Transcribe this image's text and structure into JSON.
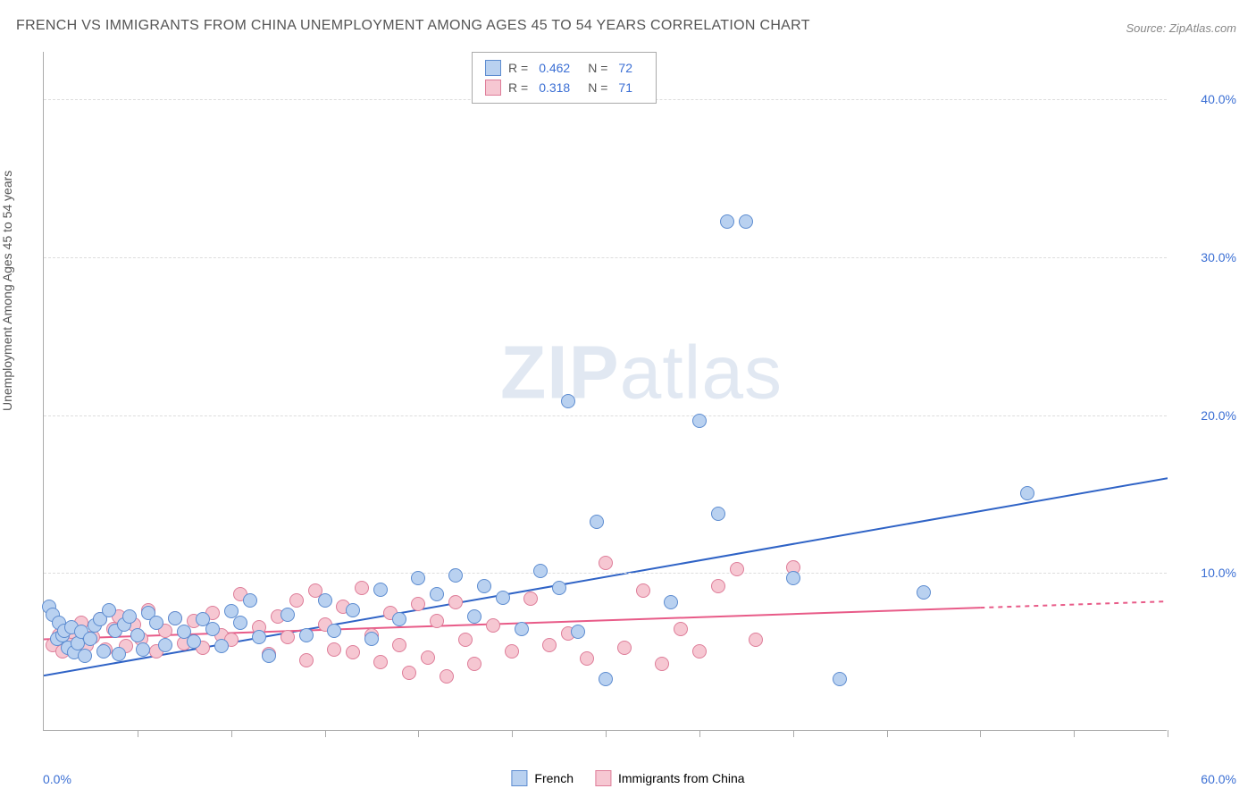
{
  "title": "FRENCH VS IMMIGRANTS FROM CHINA UNEMPLOYMENT AMONG AGES 45 TO 54 YEARS CORRELATION CHART",
  "source": "Source: ZipAtlas.com",
  "y_axis_label": "Unemployment Among Ages 45 to 54 years",
  "watermark_a": "ZIP",
  "watermark_b": "atlas",
  "chart": {
    "type": "scatter",
    "xlim": [
      0,
      60
    ],
    "ylim": [
      0,
      43
    ],
    "x_min_label": "0.0%",
    "x_max_label": "60.0%",
    "y_ticks": [
      10,
      20,
      30,
      40
    ],
    "y_tick_labels": [
      "10.0%",
      "20.0%",
      "30.0%",
      "40.0%"
    ],
    "x_tick_positions": [
      5,
      10,
      15,
      20,
      25,
      30,
      35,
      40,
      45,
      50,
      55,
      60
    ],
    "grid_color": "#dddddd",
    "axis_color": "#aaaaaa",
    "y_tick_label_color": "#3b6fd4",
    "x_tick_label_color": "#3b6fd4",
    "background_color": "#ffffff",
    "dot_radius": 8,
    "dot_border_width": 1
  },
  "series": {
    "french": {
      "label": "French",
      "fill": "#b9d1f0",
      "stroke": "#5d8cd0",
      "line_color": "#2f63c6",
      "line_width": 2,
      "r_value": "0.462",
      "n_value": "72",
      "trend": {
        "x1": 0,
        "y1": 3.5,
        "x2": 60,
        "y2": 16.0
      },
      "points": [
        [
          0.3,
          7.8
        ],
        [
          0.5,
          7.3
        ],
        [
          0.7,
          5.8
        ],
        [
          0.8,
          6.8
        ],
        [
          1.0,
          6.0
        ],
        [
          1.1,
          6.3
        ],
        [
          1.3,
          5.2
        ],
        [
          1.5,
          6.5
        ],
        [
          1.6,
          4.9
        ],
        [
          1.8,
          5.5
        ],
        [
          2.0,
          6.2
        ],
        [
          2.2,
          4.7
        ],
        [
          2.5,
          5.8
        ],
        [
          2.7,
          6.6
        ],
        [
          3.0,
          7.0
        ],
        [
          3.2,
          5.0
        ],
        [
          3.5,
          7.6
        ],
        [
          3.8,
          6.3
        ],
        [
          4.0,
          4.8
        ],
        [
          4.3,
          6.7
        ],
        [
          4.6,
          7.2
        ],
        [
          5.0,
          6.0
        ],
        [
          5.3,
          5.1
        ],
        [
          5.6,
          7.4
        ],
        [
          6.0,
          6.8
        ],
        [
          6.5,
          5.4
        ],
        [
          7.0,
          7.1
        ],
        [
          7.5,
          6.2
        ],
        [
          8.0,
          5.6
        ],
        [
          8.5,
          7.0
        ],
        [
          9.0,
          6.4
        ],
        [
          9.5,
          5.3
        ],
        [
          10.0,
          7.5
        ],
        [
          10.5,
          6.8
        ],
        [
          11.0,
          8.2
        ],
        [
          11.5,
          5.9
        ],
        [
          12.0,
          4.7
        ],
        [
          13.0,
          7.3
        ],
        [
          14.0,
          6.0
        ],
        [
          15.0,
          8.2
        ],
        [
          15.5,
          6.3
        ],
        [
          16.5,
          7.6
        ],
        [
          17.5,
          5.8
        ],
        [
          18.0,
          8.9
        ],
        [
          19.0,
          7.0
        ],
        [
          20.0,
          9.6
        ],
        [
          21.0,
          8.6
        ],
        [
          22.0,
          9.8
        ],
        [
          23.0,
          7.2
        ],
        [
          23.5,
          9.1
        ],
        [
          24.5,
          8.4
        ],
        [
          25.5,
          6.4
        ],
        [
          26.5,
          10.1
        ],
        [
          27.5,
          9.0
        ],
        [
          28.5,
          6.2
        ],
        [
          29.5,
          13.2
        ],
        [
          28.0,
          20.8
        ],
        [
          30.0,
          3.2
        ],
        [
          33.5,
          8.1
        ],
        [
          35.0,
          19.6
        ],
        [
          36.0,
          13.7
        ],
        [
          36.5,
          32.2
        ],
        [
          37.5,
          32.2
        ],
        [
          40.0,
          9.6
        ],
        [
          42.5,
          3.2
        ],
        [
          47.0,
          8.7
        ],
        [
          52.5,
          15.0
        ]
      ]
    },
    "china": {
      "label": "Immigrants from China",
      "fill": "#f6c7d2",
      "stroke": "#de7d99",
      "line_color": "#e85b88",
      "line_width": 2,
      "r_value": "0.318",
      "n_value": "71",
      "trend": {
        "x1": 0,
        "y1": 5.8,
        "x2": 50,
        "y2": 7.8,
        "x2_dash": 60,
        "y2_dash": 8.2
      },
      "points": [
        [
          0.5,
          5.4
        ],
        [
          0.8,
          6.0
        ],
        [
          1.0,
          5.0
        ],
        [
          1.3,
          5.6
        ],
        [
          1.5,
          6.2
        ],
        [
          1.8,
          5.2
        ],
        [
          2.0,
          6.8
        ],
        [
          2.3,
          5.4
        ],
        [
          2.6,
          5.9
        ],
        [
          3.0,
          7.0
        ],
        [
          3.3,
          5.1
        ],
        [
          3.7,
          6.4
        ],
        [
          4.0,
          7.2
        ],
        [
          4.4,
          5.3
        ],
        [
          4.8,
          6.7
        ],
        [
          5.2,
          5.8
        ],
        [
          5.6,
          7.6
        ],
        [
          6.0,
          5.0
        ],
        [
          6.5,
          6.3
        ],
        [
          7.0,
          7.1
        ],
        [
          7.5,
          5.5
        ],
        [
          8.0,
          6.9
        ],
        [
          8.5,
          5.2
        ],
        [
          9.0,
          7.4
        ],
        [
          9.5,
          6.0
        ],
        [
          10.0,
          5.7
        ],
        [
          10.5,
          8.6
        ],
        [
          11.5,
          6.5
        ],
        [
          12.0,
          4.8
        ],
        [
          12.5,
          7.2
        ],
        [
          13.0,
          5.9
        ],
        [
          13.5,
          8.2
        ],
        [
          14.0,
          4.4
        ],
        [
          14.5,
          8.8
        ],
        [
          15.0,
          6.7
        ],
        [
          15.5,
          5.1
        ],
        [
          16.0,
          7.8
        ],
        [
          16.5,
          4.9
        ],
        [
          17.0,
          9.0
        ],
        [
          17.5,
          6.0
        ],
        [
          18.0,
          4.3
        ],
        [
          18.5,
          7.4
        ],
        [
          19.0,
          5.4
        ],
        [
          19.5,
          3.6
        ],
        [
          20.0,
          8.0
        ],
        [
          20.5,
          4.6
        ],
        [
          21.0,
          6.9
        ],
        [
          21.5,
          3.4
        ],
        [
          22.0,
          8.1
        ],
        [
          22.5,
          5.7
        ],
        [
          23.0,
          4.2
        ],
        [
          24.0,
          6.6
        ],
        [
          25.0,
          5.0
        ],
        [
          26.0,
          8.3
        ],
        [
          27.0,
          5.4
        ],
        [
          28.0,
          6.1
        ],
        [
          29.0,
          4.5
        ],
        [
          30.0,
          10.6
        ],
        [
          31.0,
          5.2
        ],
        [
          32.0,
          8.8
        ],
        [
          33.0,
          4.2
        ],
        [
          34.0,
          6.4
        ],
        [
          35.0,
          5.0
        ],
        [
          36.0,
          9.1
        ],
        [
          37.0,
          10.2
        ],
        [
          38.0,
          5.7
        ],
        [
          40.0,
          10.3
        ]
      ]
    }
  },
  "legend": {
    "r_label": "R =",
    "n_label": "N ="
  }
}
